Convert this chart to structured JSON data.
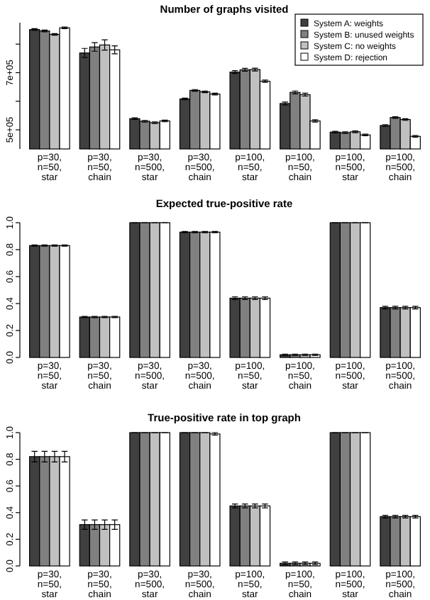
{
  "chart_data": [
    {
      "type": "bar",
      "title": "Number of graphs visited",
      "categories": [
        "p=30,\nn=50,\nstar",
        "p=30,\nn=50,\nchain",
        "p=30,\nn=500,\nstar",
        "p=30,\nn=500,\nchain",
        "p=100,\nn=50,\nstar",
        "p=100,\nn=50,\nchain",
        "p=100,\nn=500,\nstar",
        "p=100,\nn=500,\nchain"
      ],
      "series": [
        {
          "name": "System A: weights",
          "color": "#404040",
          "values": [
            851000,
            769000,
            539000,
            608000,
            702000,
            592000,
            492000,
            515000
          ],
          "errors": [
            3000,
            16000,
            3000,
            3000,
            5000,
            5000,
            3000,
            3000
          ]
        },
        {
          "name": "System B: unused weights",
          "color": "#808080",
          "values": [
            846000,
            790000,
            530000,
            638000,
            710000,
            631000,
            490000,
            543000
          ],
          "errors": [
            3000,
            15000,
            3000,
            3000,
            5000,
            5000,
            3000,
            3000
          ]
        },
        {
          "name": "System C: no weights",
          "color": "#c0c0c0",
          "values": [
            834000,
            797000,
            525000,
            633000,
            711000,
            623000,
            493000,
            536000
          ],
          "errors": [
            3000,
            18000,
            3000,
            3000,
            5000,
            5000,
            3000,
            3000
          ]
        },
        {
          "name": "System D: rejection",
          "color": "#ffffff",
          "values": [
            857000,
            780000,
            531000,
            625000,
            670000,
            531000,
            482000,
            477000
          ],
          "errors": [
            3000,
            14000,
            3000,
            3000,
            4000,
            4000,
            3000,
            3000
          ]
        }
      ],
      "ylim": [
        433000,
        875000
      ],
      "yticks": [
        {
          "value": 500000,
          "label": "5e+05"
        },
        {
          "value": 600000,
          "label": null
        },
        {
          "value": 700000,
          "label": "7e+05"
        },
        {
          "value": 800000,
          "label": null
        }
      ],
      "legend": "top right"
    },
    {
      "type": "bar",
      "title": "Expected true-positive rate",
      "categories": [
        "p=30,\nn=50,\nstar",
        "p=30,\nn=50,\nchain",
        "p=30,\nn=500,\nstar",
        "p=30,\nn=500,\nchain",
        "p=100,\nn=50,\nstar",
        "p=100,\nn=50,\nchain",
        "p=100,\nn=500,\nstar",
        "p=100,\nn=500,\nchain"
      ],
      "series": [
        {
          "color": "#404040",
          "values": [
            0.83,
            0.3,
            1.0,
            0.93,
            0.44,
            0.02,
            1.0,
            0.37
          ],
          "errors": [
            0.005,
            0.005,
            0,
            0.005,
            0.01,
            0.005,
            0,
            0.01
          ]
        },
        {
          "color": "#808080",
          "values": [
            0.83,
            0.3,
            1.0,
            0.93,
            0.44,
            0.02,
            1.0,
            0.37
          ],
          "errors": [
            0.005,
            0.005,
            0,
            0.005,
            0.01,
            0.005,
            0,
            0.01
          ]
        },
        {
          "color": "#c0c0c0",
          "values": [
            0.83,
            0.3,
            1.0,
            0.93,
            0.44,
            0.02,
            1.0,
            0.37
          ],
          "errors": [
            0.005,
            0.005,
            0,
            0.005,
            0.01,
            0.005,
            0,
            0.01
          ]
        },
        {
          "color": "#ffffff",
          "values": [
            0.83,
            0.3,
            1.0,
            0.93,
            0.44,
            0.02,
            1.0,
            0.37
          ],
          "errors": [
            0.005,
            0.005,
            0,
            0.005,
            0.01,
            0.005,
            0,
            0.01
          ]
        }
      ],
      "ylim": [
        0,
        1
      ],
      "yticks": [
        {
          "value": 0,
          "label": "0.0"
        },
        {
          "value": 0.2,
          "label": "0.2"
        },
        {
          "value": 0.4,
          "label": "0.4"
        },
        {
          "value": 0.6,
          "label": "0.6"
        },
        {
          "value": 0.8,
          "label": "0.8"
        },
        {
          "value": 1,
          "label": "1.0"
        }
      ]
    },
    {
      "type": "bar",
      "title": "True-positive rate in top graph",
      "categories": [
        "p=30,\nn=50,\nstar",
        "p=30,\nn=50,\nchain",
        "p=30,\nn=500,\nstar",
        "p=30,\nn=500,\nchain",
        "p=100,\nn=50,\nstar",
        "p=100,\nn=50,\nchain",
        "p=100,\nn=500,\nstar",
        "p=100,\nn=500,\nchain"
      ],
      "series": [
        {
          "color": "#404040",
          "values": [
            0.82,
            0.31,
            1.0,
            1.0,
            0.45,
            0.02,
            1.0,
            0.37
          ],
          "errors": [
            0.04,
            0.035,
            0,
            0,
            0.015,
            0.01,
            0,
            0.01
          ]
        },
        {
          "color": "#808080",
          "values": [
            0.82,
            0.31,
            1.0,
            1.0,
            0.45,
            0.02,
            1.0,
            0.37
          ],
          "errors": [
            0.04,
            0.035,
            0,
            0,
            0.015,
            0.01,
            0,
            0.01
          ]
        },
        {
          "color": "#c0c0c0",
          "values": [
            0.82,
            0.31,
            1.0,
            1.0,
            0.45,
            0.02,
            1.0,
            0.37
          ],
          "errors": [
            0.04,
            0.035,
            0,
            0,
            0.015,
            0.01,
            0,
            0.01
          ]
        },
        {
          "color": "#ffffff",
          "values": [
            0.82,
            0.31,
            1.0,
            0.99,
            0.45,
            0.02,
            1.0,
            0.37
          ],
          "errors": [
            0.04,
            0.035,
            0,
            0.01,
            0.015,
            0.01,
            0,
            0.01
          ]
        }
      ],
      "ylim": [
        0,
        1
      ],
      "yticks": [
        {
          "value": 0,
          "label": "0.0"
        },
        {
          "value": 0.2,
          "label": "0.2"
        },
        {
          "value": 0.4,
          "label": "0.4"
        },
        {
          "value": 0.6,
          "label": "0.6"
        },
        {
          "value": 0.8,
          "label": "0.8"
        },
        {
          "value": 1,
          "label": "1.0"
        }
      ]
    }
  ]
}
